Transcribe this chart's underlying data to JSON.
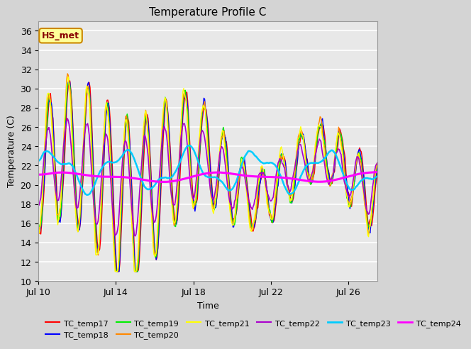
{
  "title": "Temperature Profile C",
  "xlabel": "Time",
  "ylabel": "Temperature (C)",
  "ylim": [
    10,
    37
  ],
  "xlim": [
    0,
    17.5
  ],
  "x_ticks_labels": [
    "Jul 10",
    "Jul 14",
    "Jul 18",
    "Jul 22",
    "Jul 26"
  ],
  "x_ticks_pos": [
    0,
    4,
    8,
    12,
    16
  ],
  "annotation_text": "HS_met",
  "series_colors": {
    "TC_temp17": "#ff0000",
    "TC_temp18": "#0000ff",
    "TC_temp19": "#00ee00",
    "TC_temp20": "#ff8800",
    "TC_temp21": "#ffff00",
    "TC_temp22": "#aa00cc",
    "TC_temp23": "#00ccff",
    "TC_temp24": "#ff00ff"
  },
  "legend_order": [
    "TC_temp17",
    "TC_temp18",
    "TC_temp19",
    "TC_temp20",
    "TC_temp21",
    "TC_temp22",
    "TC_temp23",
    "TC_temp24"
  ],
  "fig_bg_color": "#d4d4d4",
  "plot_bg_color": "#e8e8e8",
  "annotation_bg": "#ffff99",
  "annotation_border": "#cc8800",
  "grid_color": "#ffffff"
}
